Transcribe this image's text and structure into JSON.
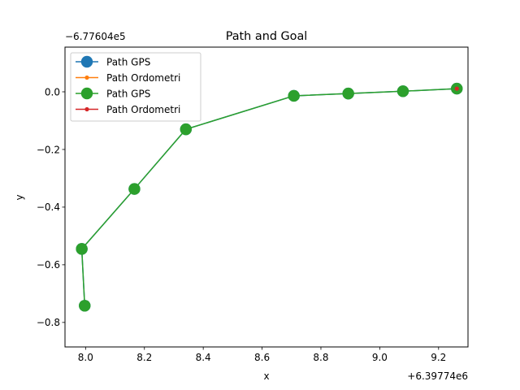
{
  "chart_data": {
    "type": "line",
    "title": "Path and Goal",
    "xlabel": "x",
    "ylabel": "y",
    "x_offset_label": "+6.39774e6",
    "y_offset_label": "−6.77604e5",
    "xlim": [
      7.93,
      9.3
    ],
    "ylim": [
      -0.885,
      0.155
    ],
    "x_ticks": [
      {
        "v": 8.0,
        "label": "8.0"
      },
      {
        "v": 8.2,
        "label": "8.2"
      },
      {
        "v": 8.4,
        "label": "8.4"
      },
      {
        "v": 8.6,
        "label": "8.6"
      },
      {
        "v": 8.8,
        "label": "8.8"
      },
      {
        "v": 9.0,
        "label": "9.0"
      },
      {
        "v": 9.2,
        "label": "9.2"
      }
    ],
    "y_ticks": [
      {
        "v": 0.0,
        "label": "0.0"
      },
      {
        "v": -0.2,
        "label": "−0.2"
      },
      {
        "v": -0.4,
        "label": "−0.4"
      },
      {
        "v": -0.6,
        "label": "−0.6"
      },
      {
        "v": -0.8,
        "label": "−0.8"
      }
    ],
    "grid": false,
    "legend_position": "upper-left",
    "series": [
      {
        "name": "Path GPS",
        "color": "#1f77b4",
        "marker": "big-circle",
        "x": [
          7.997,
          7.987,
          8.166,
          8.341,
          8.708,
          8.893,
          9.079,
          9.262
        ],
        "y": [
          -0.742,
          -0.545,
          -0.337,
          -0.13,
          -0.014,
          -0.006,
          0.002,
          0.011
        ]
      },
      {
        "name": "Path Ordometri",
        "color": "#ff7f0e",
        "marker": "small-dot",
        "x": [
          9.262
        ],
        "y": [
          0.011
        ]
      },
      {
        "name": "Path GPS",
        "color": "#2ca02c",
        "marker": "big-circle",
        "x": [
          7.997,
          7.987,
          8.166,
          8.341,
          8.708,
          8.893,
          9.079,
          9.262
        ],
        "y": [
          -0.742,
          -0.545,
          -0.337,
          -0.13,
          -0.014,
          -0.006,
          0.002,
          0.011
        ]
      },
      {
        "name": "Path Ordometri",
        "color": "#d62728",
        "marker": "small-dot",
        "x": [
          9.262
        ],
        "y": [
          0.011
        ]
      }
    ]
  }
}
